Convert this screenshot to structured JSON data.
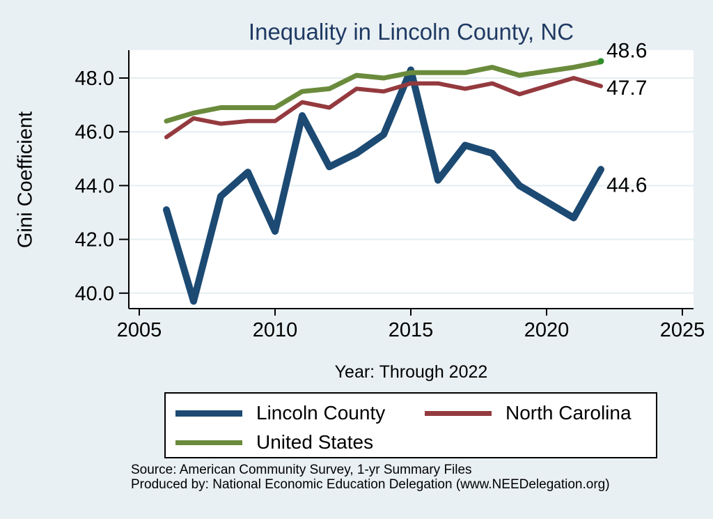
{
  "colors": {
    "background": "#e9f0f3",
    "plot_background": "#ffffff",
    "grid": "#e3edf0",
    "axis": "#000000",
    "title": "#1f3a63",
    "tick_text": "#000000"
  },
  "chart_data": {
    "type": "line",
    "title": "Inequality in Lincoln County, NC",
    "xlabel": "Year: Through 2022",
    "ylabel": "Gini Coefficient",
    "xlim": [
      2004.6,
      2025.4
    ],
    "ylim": [
      39.4,
      49.0
    ],
    "grid": "horizontal-only",
    "legend_position": "below",
    "x_ticks": [
      {
        "value": 2005,
        "label": "2005"
      },
      {
        "value": 2010,
        "label": "2010"
      },
      {
        "value": 2015,
        "label": "2015"
      },
      {
        "value": 2020,
        "label": "2020"
      },
      {
        "value": 2025,
        "label": "2025"
      }
    ],
    "y_ticks": [
      {
        "value": 40,
        "label": "40.0"
      },
      {
        "value": 42,
        "label": "42.0"
      },
      {
        "value": 44,
        "label": "44.0"
      },
      {
        "value": 46,
        "label": "46.0"
      },
      {
        "value": 48,
        "label": "48.0"
      }
    ],
    "series": [
      {
        "name": "Lincoln County",
        "color": "#1c4a73",
        "line_width": 10,
        "end_label": "44.6",
        "end_label_dy": 23,
        "points": [
          [
            2006,
            43.1
          ],
          [
            2007,
            39.7
          ],
          [
            2008,
            43.6
          ],
          [
            2009,
            44.5
          ],
          [
            2010,
            42.3
          ],
          [
            2011,
            46.6
          ],
          [
            2012,
            44.7
          ],
          [
            2013,
            45.2
          ],
          [
            2014,
            45.9
          ],
          [
            2015,
            48.3
          ],
          [
            2016,
            44.2
          ],
          [
            2017,
            45.5
          ],
          [
            2018,
            45.2
          ],
          [
            2019,
            44.0
          ],
          [
            2021,
            42.8
          ],
          [
            2022,
            44.6
          ]
        ]
      },
      {
        "name": "North Carolina",
        "color": "#943a3e",
        "line_width": 6,
        "end_label": "47.7",
        "end_label_dy": 3,
        "points": [
          [
            2006,
            45.8
          ],
          [
            2007,
            46.5
          ],
          [
            2008,
            46.3
          ],
          [
            2009,
            46.4
          ],
          [
            2010,
            46.4
          ],
          [
            2011,
            47.1
          ],
          [
            2012,
            46.9
          ],
          [
            2013,
            47.6
          ],
          [
            2014,
            47.5
          ],
          [
            2015,
            47.8
          ],
          [
            2016,
            47.8
          ],
          [
            2017,
            47.6
          ],
          [
            2018,
            47.8
          ],
          [
            2019,
            47.4
          ],
          [
            2021,
            48.0
          ],
          [
            2022,
            47.7
          ]
        ]
      },
      {
        "name": "United States",
        "color": "#6a8b3c",
        "line_width": 7,
        "end_label": "48.6",
        "end_label_dy": -16,
        "end_marker_color": "#2f8f2b",
        "points": [
          [
            2006,
            46.4
          ],
          [
            2007,
            46.7
          ],
          [
            2008,
            46.9
          ],
          [
            2009,
            46.9
          ],
          [
            2010,
            46.9
          ],
          [
            2011,
            47.5
          ],
          [
            2012,
            47.6
          ],
          [
            2013,
            48.1
          ],
          [
            2014,
            48.0
          ],
          [
            2015,
            48.2
          ],
          [
            2016,
            48.2
          ],
          [
            2017,
            48.2
          ],
          [
            2018,
            48.4
          ],
          [
            2019,
            48.1
          ],
          [
            2021,
            48.4
          ],
          [
            2022,
            48.6
          ]
        ]
      }
    ]
  },
  "footer": {
    "line1": "Source: American Community Survey, 1-yr Summary Files",
    "line2": "Produced by: National Economic Education Delegation (www.NEEDelegation.org)"
  }
}
